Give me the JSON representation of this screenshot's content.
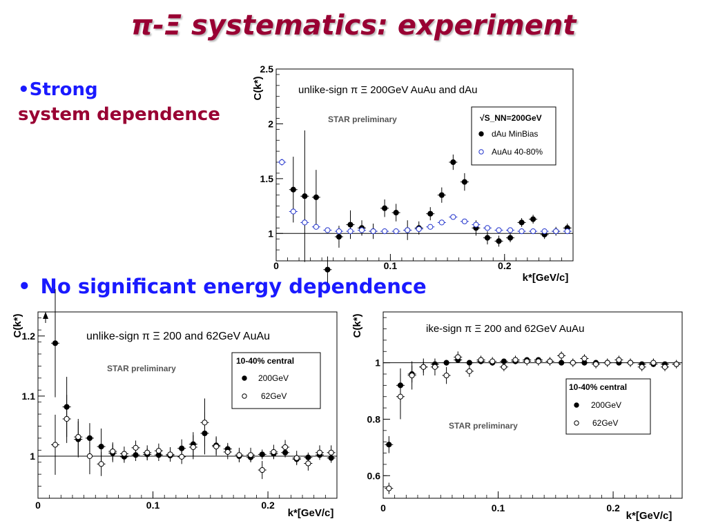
{
  "slide": {
    "title": "π-Ξ systematics: experiment",
    "bullet1_line1": "•Strong",
    "bullet1_line2": "system dependence",
    "bullet2_marker": "•",
    "bullet2_text": "No significant energy dependence"
  },
  "colors": {
    "title": "#990033",
    "bullet_blue": "#1a1aff",
    "bullet_red": "#990033",
    "open_marker_blue": "#2233cc"
  },
  "chart_data": [
    {
      "type": "scatter",
      "title": "unlike-sign π Ξ  200GeV AuAu and dAu",
      "annotation": "STAR preliminary",
      "xlabel": "k*[GeV/c]",
      "ylabel": "C(k*)",
      "xlim": [
        0,
        0.26
      ],
      "ylim": [
        0.75,
        2.5
      ],
      "xticks": [
        0,
        0.1,
        0.2
      ],
      "xtick_labels": [
        "0",
        "0.1",
        "0.2"
      ],
      "yticks": [
        1,
        1.5,
        2,
        2.5
      ],
      "ytick_labels": [
        "1",
        "1.5",
        "2",
        "2.5"
      ],
      "reference_line": 1,
      "legend_header": "√S_NN=200GeV",
      "legend_position": "top-right",
      "series": [
        {
          "name": "dAu  MinBias",
          "marker": "filled",
          "color": "#000000",
          "x": [
            0.015,
            0.025,
            0.035,
            0.045,
            0.055,
            0.065,
            0.075,
            0.085,
            0.095,
            0.105,
            0.115,
            0.125,
            0.135,
            0.145,
            0.155,
            0.165,
            0.175,
            0.185,
            0.195,
            0.205,
            0.215,
            0.225,
            0.235,
            0.245,
            0.255
          ],
          "y": [
            1.4,
            1.34,
            1.33,
            0.67,
            0.97,
            1.08,
            1.05,
            1.02,
            1.23,
            1.19,
            1.03,
            1.05,
            1.18,
            1.35,
            1.65,
            1.47,
            1.05,
            0.96,
            0.93,
            0.96,
            1.1,
            1.13,
            0.99,
            1.02,
            1.05
          ],
          "err": [
            0.3,
            0.6,
            0.25,
            0.12,
            0.1,
            0.13,
            0.07,
            0.07,
            0.08,
            0.08,
            0.09,
            0.06,
            0.06,
            0.07,
            0.07,
            0.08,
            0.07,
            0.06,
            0.05,
            0.04,
            0.04,
            0.04,
            0.04,
            0.04,
            0.04
          ]
        },
        {
          "name": "AuAu 40-80%",
          "marker": "open",
          "color": "#2233cc",
          "x": [
            0.005,
            0.015,
            0.025,
            0.035,
            0.045,
            0.055,
            0.065,
            0.075,
            0.085,
            0.095,
            0.105,
            0.115,
            0.125,
            0.135,
            0.145,
            0.155,
            0.165,
            0.175,
            0.185,
            0.195,
            0.205,
            0.215,
            0.225,
            0.235,
            0.245,
            0.255
          ],
          "y": [
            1.65,
            1.2,
            1.1,
            1.06,
            1.03,
            1.02,
            1.02,
            1.03,
            1.02,
            1.02,
            1.02,
            1.03,
            1.04,
            1.06,
            1.1,
            1.15,
            1.11,
            1.08,
            1.05,
            1.03,
            1.03,
            1.02,
            1.02,
            1.02,
            1.02,
            1.02
          ],
          "err": [
            0.03,
            0.02,
            0.01,
            0.01,
            0.01,
            0.01,
            0.01,
            0.01,
            0.01,
            0.01,
            0.01,
            0.01,
            0.01,
            0.01,
            0.01,
            0.01,
            0.01,
            0.01,
            0.01,
            0.01,
            0.01,
            0.01,
            0.01,
            0.01,
            0.01,
            0.01
          ]
        }
      ]
    },
    {
      "type": "scatter",
      "title": "unlike-sign π Ξ  200 and 62GeV AuAu",
      "annotation": "STAR preliminary",
      "xlabel": "k*[GeV/c]",
      "ylabel": "C(k*)",
      "xlim": [
        0,
        0.26
      ],
      "ylim": [
        0.93,
        1.24
      ],
      "xticks": [
        0,
        0.1,
        0.2
      ],
      "xtick_labels": [
        "0",
        "0.1",
        "0.2"
      ],
      "yticks": [
        1,
        1.1,
        1.2
      ],
      "ytick_labels": [
        "1",
        "1.1",
        "1.2"
      ],
      "reference_line": 1,
      "legend_header": "10-40% central",
      "legend_position": "top-right",
      "series": [
        {
          "name": "200GeV",
          "marker": "filled",
          "color": "#000000",
          "x": [
            0.015,
            0.025,
            0.035,
            0.045,
            0.055,
            0.065,
            0.075,
            0.085,
            0.095,
            0.105,
            0.115,
            0.125,
            0.135,
            0.145,
            0.155,
            0.165,
            0.175,
            0.185,
            0.195,
            0.205,
            0.215,
            0.225,
            0.235,
            0.245,
            0.255
          ],
          "y": [
            1.188,
            1.082,
            1.028,
            1.03,
            1.016,
            1.005,
            0.999,
            1.002,
            1.003,
            1.002,
            1.001,
            1.013,
            1.02,
            1.038,
            1.018,
            1.012,
            1.0,
            0.998,
            1.003,
            1.004,
            1.006,
            0.995,
            0.998,
            1.002,
            0.997
          ],
          "err": [
            0.09,
            0.05,
            0.03,
            0.025,
            0.03,
            0.015,
            0.01,
            0.01,
            0.01,
            0.01,
            0.01,
            0.015,
            0.02,
            0.035,
            0.015,
            0.01,
            0.01,
            0.008,
            0.008,
            0.008,
            0.008,
            0.008,
            0.008,
            0.008,
            0.008
          ]
        },
        {
          "name": "62GeV",
          "marker": "open",
          "color": "#000000",
          "x": [
            0.015,
            0.025,
            0.035,
            0.045,
            0.055,
            0.065,
            0.075,
            0.085,
            0.095,
            0.105,
            0.115,
            0.125,
            0.135,
            0.145,
            0.155,
            0.165,
            0.175,
            0.185,
            0.195,
            0.205,
            0.215,
            0.225,
            0.235,
            0.245,
            0.255
          ],
          "y": [
            1.019,
            1.062,
            1.032,
            1.0,
            0.987,
            1.008,
            1.004,
            1.014,
            1.006,
            1.009,
            1.003,
            0.999,
            1.015,
            1.056,
            1.016,
            1.007,
            1.002,
            1.002,
            0.977,
            1.007,
            1.015,
            0.997,
            0.988,
            1.006,
            1.006
          ],
          "err": [
            0.05,
            0.04,
            0.03,
            0.03,
            0.02,
            0.015,
            0.012,
            0.012,
            0.012,
            0.012,
            0.012,
            0.012,
            0.02,
            0.04,
            0.015,
            0.012,
            0.012,
            0.012,
            0.015,
            0.012,
            0.012,
            0.012,
            0.012,
            0.012,
            0.012
          ]
        }
      ]
    },
    {
      "type": "scatter",
      "title": "ike-sign π Ξ  200 and 62GeV AuAu",
      "annotation": "STAR preliminary",
      "xlabel": "k*[GeV/c]",
      "ylabel": "C(k*)",
      "xlim": [
        0,
        0.26
      ],
      "ylim": [
        0.52,
        1.18
      ],
      "xticks": [
        0,
        0.1,
        0.2
      ],
      "xtick_labels": [
        "0",
        "0.1",
        "0.2"
      ],
      "yticks": [
        0.6,
        0.8,
        1
      ],
      "ytick_labels": [
        "0.6",
        "0.8",
        "1"
      ],
      "reference_line": 1,
      "legend_header": "10-40% central",
      "legend_position": "middle-right",
      "series": [
        {
          "name": "200GeV",
          "marker": "filled",
          "color": "#000000",
          "x": [
            0.005,
            0.015,
            0.025,
            0.035,
            0.045,
            0.055,
            0.065,
            0.075,
            0.085,
            0.095,
            0.105,
            0.115,
            0.125,
            0.135,
            0.145,
            0.155,
            0.165,
            0.175,
            0.185,
            0.195,
            0.205,
            0.215,
            0.225,
            0.235,
            0.245,
            0.255
          ],
          "y": [
            0.71,
            0.92,
            0.96,
            0.985,
            0.995,
            1.0,
            1.01,
            1.0,
            1.005,
            1.0,
            1.005,
            1.005,
            1.01,
            1.01,
            1.005,
            1.0,
            1.0,
            1.0,
            1.0,
            1.0,
            1.0,
            1.0,
            0.995,
            0.995,
            0.995,
            0.995
          ],
          "err": [
            0.03,
            0.06,
            0.03,
            0.02,
            0.015,
            0.01,
            0.01,
            0.008,
            0.008,
            0.008,
            0.008,
            0.008,
            0.008,
            0.008,
            0.008,
            0.008,
            0.008,
            0.008,
            0.008,
            0.008,
            0.008,
            0.008,
            0.008,
            0.008,
            0.008,
            0.008
          ]
        },
        {
          "name": "62GeV",
          "marker": "open",
          "color": "#000000",
          "x": [
            0.005,
            0.015,
            0.025,
            0.035,
            0.045,
            0.055,
            0.065,
            0.075,
            0.085,
            0.095,
            0.105,
            0.115,
            0.125,
            0.135,
            0.145,
            0.155,
            0.165,
            0.175,
            0.185,
            0.195,
            0.205,
            0.215,
            0.225,
            0.235,
            0.245,
            0.255
          ],
          "y": [
            0.555,
            0.88,
            0.955,
            0.985,
            0.985,
            0.955,
            1.02,
            0.97,
            1.01,
            1.005,
            0.985,
            1.01,
            1.005,
            1.005,
            1.005,
            1.025,
            1.0,
            1.015,
            0.995,
            1.0,
            1.01,
            1.0,
            0.985,
            1.0,
            0.985,
            0.995
          ],
          "err": [
            0.02,
            0.08,
            0.05,
            0.03,
            0.03,
            0.03,
            0.02,
            0.02,
            0.015,
            0.015,
            0.015,
            0.015,
            0.015,
            0.015,
            0.015,
            0.015,
            0.015,
            0.015,
            0.015,
            0.015,
            0.015,
            0.015,
            0.015,
            0.015,
            0.015,
            0.015
          ]
        }
      ]
    }
  ]
}
